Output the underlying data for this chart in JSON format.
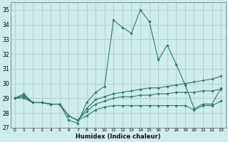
{
  "title": "",
  "xlabel": "Humidex (Indice chaleur)",
  "bg_color": "#ceecea",
  "grid_color": "#aaceca",
  "line_color": "#2d7a6a",
  "xlim": [
    -0.5,
    23.5
  ],
  "ylim": [
    27,
    35.5
  ],
  "xticks": [
    0,
    1,
    2,
    3,
    4,
    5,
    6,
    7,
    8,
    9,
    10,
    11,
    12,
    13,
    14,
    15,
    16,
    17,
    18,
    19,
    20,
    21,
    22,
    23
  ],
  "yticks": [
    27,
    28,
    29,
    30,
    31,
    32,
    33,
    34,
    35
  ],
  "series": [
    [
      29.0,
      29.3,
      28.7,
      28.7,
      28.6,
      28.6,
      27.5,
      27.3,
      28.7,
      29.4,
      29.8,
      34.3,
      33.8,
      33.4,
      35.0,
      34.2,
      31.6,
      32.6,
      31.3,
      29.9,
      28.3,
      28.6,
      28.6,
      29.7
    ],
    [
      29.0,
      29.2,
      28.7,
      28.7,
      28.6,
      28.6,
      27.8,
      27.5,
      28.3,
      28.9,
      29.1,
      29.3,
      29.4,
      29.5,
      29.6,
      29.7,
      29.7,
      29.8,
      29.9,
      30.0,
      30.1,
      30.2,
      30.3,
      30.5
    ],
    [
      29.0,
      29.1,
      28.7,
      28.7,
      28.6,
      28.6,
      27.8,
      27.5,
      28.1,
      28.6,
      28.8,
      29.0,
      29.1,
      29.1,
      29.2,
      29.2,
      29.3,
      29.3,
      29.4,
      29.4,
      29.4,
      29.5,
      29.5,
      29.6
    ],
    [
      29.0,
      29.0,
      28.7,
      28.7,
      28.6,
      28.6,
      27.8,
      27.5,
      27.8,
      28.2,
      28.4,
      28.5,
      28.5,
      28.5,
      28.5,
      28.5,
      28.5,
      28.5,
      28.5,
      28.5,
      28.2,
      28.5,
      28.5,
      28.8
    ]
  ]
}
